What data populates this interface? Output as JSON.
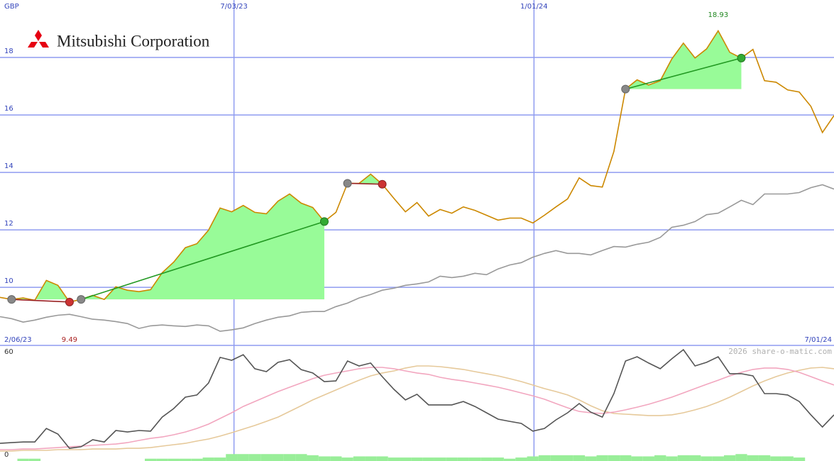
{
  "chart_data": [
    {
      "type": "line",
      "title": "Mitsubishi Corporation",
      "y_label": "GBP",
      "xlim": [
        0,
        72
      ],
      "xticks": [
        {
          "value": 20.2,
          "label": "7/03/23"
        },
        {
          "value": 46.1,
          "label": "1/01/24"
        }
      ],
      "x_range_labels": [
        {
          "value": 0,
          "label": "2/06/23"
        },
        {
          "value": 72,
          "label": "7/01/24"
        }
      ],
      "ylim": [
        7.98,
        20
      ],
      "yticks": [
        10,
        12,
        14,
        16,
        18
      ],
      "grid": true,
      "series": [
        {
          "color": "#999999",
          "values": [
            8.98,
            8.91,
            8.79,
            8.86,
            8.96,
            9.03,
            9.06,
            8.98,
            8.89,
            8.86,
            8.81,
            8.74,
            8.57,
            8.66,
            8.69,
            8.66,
            8.64,
            8.69,
            8.66,
            8.47,
            8.52,
            8.59,
            8.74,
            8.86,
            8.96,
            9.01,
            9.13,
            9.16,
            9.16,
            9.33,
            9.45,
            9.63,
            9.75,
            9.9,
            9.97,
            10.07,
            10.12,
            10.19,
            10.39,
            10.34,
            10.39,
            10.49,
            10.44,
            10.64,
            10.78,
            10.86,
            11.05,
            11.18,
            11.28,
            11.18,
            11.18,
            11.13,
            11.28,
            11.42,
            11.4,
            11.5,
            11.57,
            11.74,
            12.09,
            12.16,
            12.29,
            12.53,
            12.58,
            12.8,
            13.03,
            12.88,
            13.25,
            13.25,
            13.25,
            13.3,
            13.47,
            13.57,
            13.42
          ]
        },
        {
          "color": "#cc8800",
          "values": [
            9.65,
            9.58,
            9.63,
            9.55,
            10.24,
            10.07,
            9.49,
            9.58,
            9.72,
            9.58,
            10.02,
            9.9,
            9.85,
            9.92,
            10.51,
            10.88,
            11.38,
            11.52,
            11.99,
            12.76,
            12.63,
            12.85,
            12.61,
            12.56,
            13.0,
            13.25,
            12.93,
            12.78,
            12.29,
            12.61,
            13.62,
            13.62,
            13.94,
            13.59,
            13.1,
            12.63,
            12.95,
            12.48,
            12.71,
            12.58,
            12.8,
            12.68,
            12.51,
            12.34,
            12.41,
            12.41,
            12.24,
            12.51,
            12.8,
            13.08,
            13.81,
            13.54,
            13.49,
            14.73,
            16.9,
            17.22,
            17.04,
            17.19,
            17.95,
            18.5,
            17.98,
            18.3,
            18.93,
            18.18,
            17.98,
            18.28,
            17.19,
            17.14,
            16.87,
            16.8,
            16.3,
            15.39,
            15.98
          ]
        }
      ],
      "trades": [
        {
          "entry": 1,
          "exit": 6
        },
        {
          "entry": 7,
          "exit": 28
        },
        {
          "entry": 30,
          "exit": 33
        },
        {
          "entry": 54,
          "exit": 64
        }
      ],
      "low_label": 9.49,
      "high_label": 18.93
    },
    {
      "type": "line",
      "watermark": "2026 share-o-matic.com",
      "xlim": [
        0,
        72
      ],
      "ylim": [
        -3.7,
        63.7
      ],
      "yticks": [
        0,
        60
      ],
      "series": [
        {
          "color": "#e6c99a",
          "values": [
            2.1,
            2.1,
            2.5,
            2.5,
            2.5,
            2.9,
            2.9,
            2.9,
            3.3,
            3.3,
            3.3,
            3.7,
            3.7,
            4.1,
            5.0,
            5.8,
            6.6,
            7.9,
            9.1,
            10.8,
            12.8,
            14.9,
            17.0,
            19.4,
            21.9,
            25.2,
            28.5,
            31.9,
            34.8,
            37.7,
            40.6,
            43.4,
            45.9,
            47.6,
            48.8,
            50.5,
            51.7,
            51.7,
            51.3,
            50.5,
            49.7,
            48.4,
            47.2,
            45.9,
            44.3,
            42.6,
            40.6,
            38.5,
            36.8,
            34.8,
            31.9,
            28.5,
            25.6,
            24.0,
            23.6,
            23.2,
            22.8,
            22.8,
            23.2,
            24.4,
            26.1,
            28.1,
            30.6,
            33.5,
            36.8,
            40.1,
            43.0,
            45.5,
            47.6,
            49.2,
            50.5,
            50.9,
            50.1
          ]
        },
        {
          "color": "#f2a6bf",
          "values": [
            2.9,
            2.9,
            3.3,
            3.3,
            3.7,
            4.1,
            4.6,
            5.0,
            5.4,
            5.8,
            6.2,
            7.0,
            8.3,
            9.5,
            10.3,
            11.6,
            13.2,
            15.3,
            17.8,
            21.1,
            24.4,
            28.1,
            31.0,
            33.9,
            36.8,
            39.3,
            41.8,
            44.3,
            46.3,
            47.6,
            48.8,
            50.1,
            50.9,
            50.9,
            50.1,
            48.8,
            47.6,
            46.8,
            45.1,
            43.9,
            43.0,
            41.8,
            40.6,
            39.3,
            37.7,
            36.0,
            34.3,
            32.3,
            29.8,
            27.3,
            25.2,
            24.4,
            24.0,
            24.8,
            26.1,
            27.7,
            29.4,
            31.4,
            33.5,
            36.0,
            38.5,
            41.0,
            43.4,
            45.9,
            48.0,
            49.7,
            50.5,
            50.5,
            49.7,
            48.0,
            45.5,
            43.0,
            40.6
          ]
        },
        {
          "color": "#555555",
          "values": [
            6.6,
            7.0,
            7.4,
            7.4,
            15.3,
            12.0,
            3.7,
            4.6,
            8.7,
            7.4,
            14.1,
            13.2,
            14.1,
            13.7,
            21.9,
            26.9,
            33.5,
            34.8,
            41.8,
            56.7,
            55.0,
            58.3,
            50.1,
            48.4,
            53.8,
            55.4,
            49.6,
            47.6,
            42.6,
            43.0,
            54.6,
            51.7,
            53.4,
            45.5,
            38.1,
            31.9,
            35.2,
            29.0,
            29.0,
            29.0,
            31.0,
            28.1,
            24.4,
            20.7,
            19.4,
            18.2,
            13.7,
            15.3,
            20.3,
            24.4,
            29.8,
            24.8,
            21.9,
            35.6,
            54.6,
            57.1,
            53.4,
            50.1,
            55.9,
            61.2,
            51.7,
            53.8,
            57.1,
            47.2,
            47.2,
            45.9,
            35.6,
            35.6,
            34.8,
            31.0,
            23.2,
            16.1,
            23.2
          ]
        }
      ],
      "volume": {
        "color": "#99ee99",
        "ylim": [
          0,
          100
        ],
        "values": [
          0,
          0,
          2,
          2,
          0,
          0,
          0,
          0,
          0,
          0,
          0,
          0,
          0,
          2,
          2,
          2,
          2,
          2,
          3,
          3,
          6,
          6,
          6,
          6,
          6,
          6,
          6,
          5,
          4,
          4,
          3,
          4,
          4,
          4,
          3,
          3,
          3,
          3,
          3,
          3,
          3,
          3,
          3,
          3,
          2,
          3,
          4,
          5,
          5,
          5,
          5,
          4,
          5,
          5,
          5,
          4,
          4,
          5,
          4,
          5,
          5,
          4,
          4,
          5,
          6,
          5,
          5,
          4,
          4,
          3,
          0,
          0,
          0
        ]
      }
    }
  ]
}
